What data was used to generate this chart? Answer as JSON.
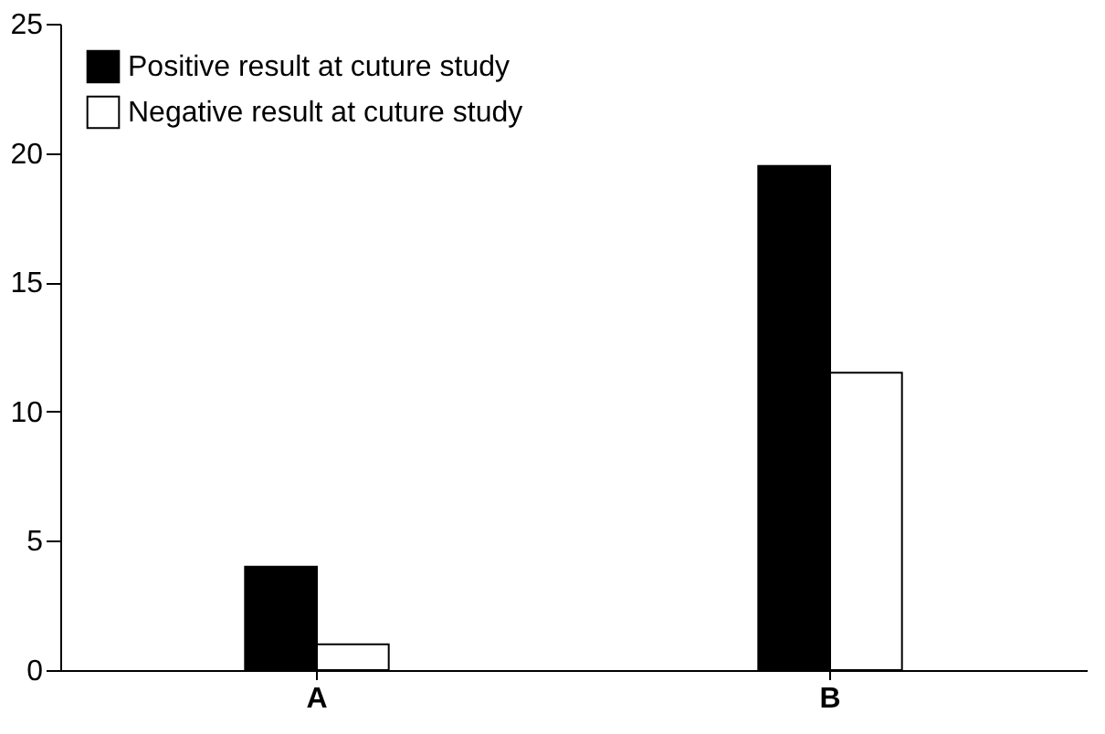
{
  "chart_data": {
    "type": "bar",
    "categories": [
      "A",
      "B"
    ],
    "series": [
      {
        "name": "Positive result at cuture study",
        "color": "#000000",
        "values": [
          4,
          19.5
        ]
      },
      {
        "name": "Negative result at cuture study",
        "color": "#ffffff",
        "values": [
          1,
          11.5
        ]
      }
    ],
    "ylim": [
      0,
      25
    ],
    "yticks": [
      0,
      5,
      10,
      15,
      20,
      25
    ],
    "grid": false,
    "legend": "top left"
  }
}
